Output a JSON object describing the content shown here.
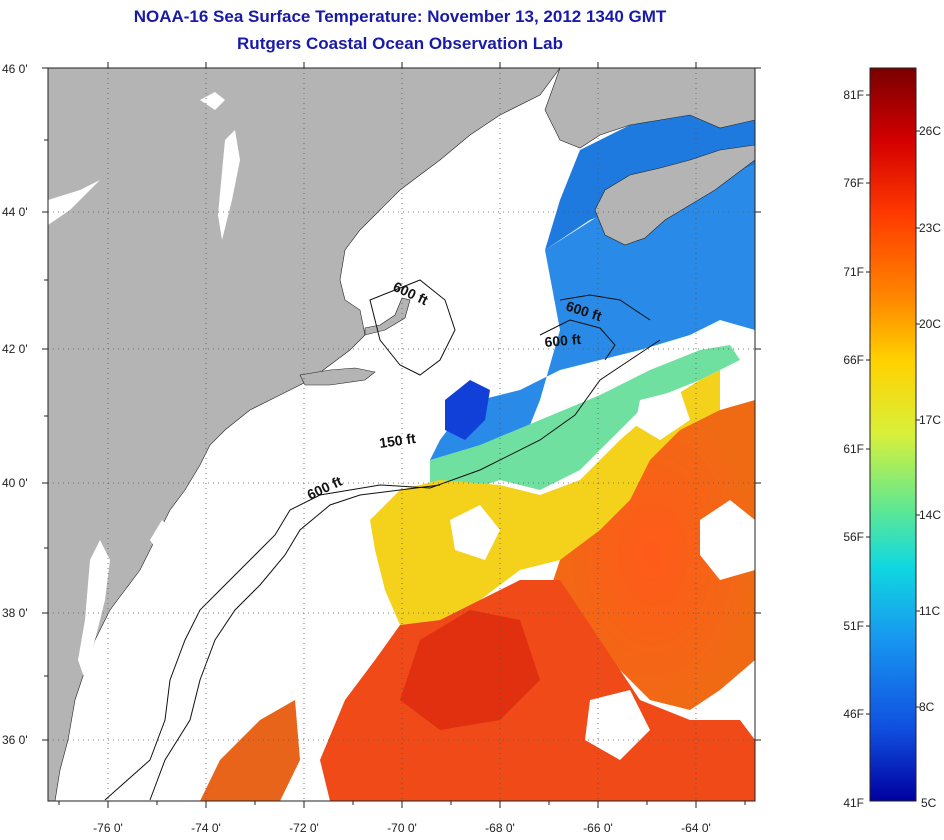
{
  "header": {
    "title": "NOAA-16 Sea Surface Temperature:  November 13, 2012 1340 GMT",
    "subtitle": "Rutgers Coastal Ocean Observation Lab"
  },
  "map": {
    "lon_ticks": [
      "-76 0'",
      "-74 0'",
      "-72 0'",
      "-70 0'",
      "-68 0'",
      "-66 0'",
      "-64 0'"
    ],
    "lat_ticks": [
      "46 0'",
      "44 0'",
      "42 0'",
      "40 0'",
      "38 0'",
      "36 0'"
    ],
    "contour_labels": [
      "600 ft",
      "600 ft",
      "600 ft",
      "150 ft",
      "600 ft"
    ],
    "colors": {
      "land": "#b4b4b4",
      "no_data": "#ffffff",
      "grid": "#555555"
    }
  },
  "colorbar": {
    "fahrenheit": [
      "81F",
      "76F",
      "71F",
      "66F",
      "61F",
      "56F",
      "51F",
      "46F",
      "41F"
    ],
    "celsius": [
      "26C",
      "23C",
      "20C",
      "17C",
      "14C",
      "11C",
      "8C",
      "5C"
    ],
    "stops": [
      "#7a0000",
      "#d40000",
      "#ff3a00",
      "#ff8c00",
      "#ffd200",
      "#d8f03a",
      "#60e890",
      "#10d8e0",
      "#1896f0",
      "#1050e0",
      "#0000a0"
    ]
  }
}
